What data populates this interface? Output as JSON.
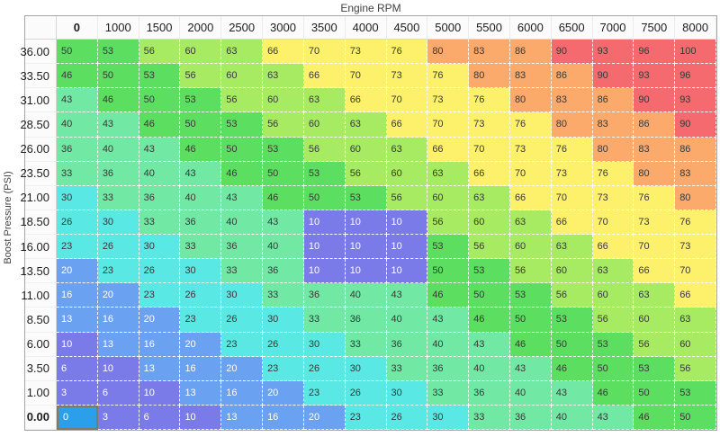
{
  "title": "Engine RPM",
  "y_axis_label": "Boost Pressure (PSI)",
  "chart_data": {
    "type": "heatmap",
    "xlabel": "Engine RPM",
    "ylabel": "Boost Pressure (PSI)",
    "columns": [
      "0",
      "1000",
      "1500",
      "2000",
      "2500",
      "3000",
      "3500",
      "4000",
      "4500",
      "5000",
      "5500",
      "6000",
      "6500",
      "7000",
      "7500",
      "8000"
    ],
    "rows": [
      "36.00",
      "33.50",
      "31.00",
      "28.50",
      "26.00",
      "23.50",
      "21.00",
      "18.50",
      "16.00",
      "13.50",
      "11.00",
      "8.50",
      "6.00",
      "3.50",
      "1.00",
      "0.00"
    ],
    "values": [
      [
        50,
        53,
        56,
        60,
        63,
        66,
        70,
        73,
        76,
        80,
        83,
        86,
        90,
        93,
        96,
        100
      ],
      [
        46,
        50,
        53,
        56,
        60,
        63,
        66,
        70,
        73,
        76,
        80,
        83,
        86,
        90,
        93,
        96
      ],
      [
        43,
        46,
        50,
        53,
        56,
        60,
        63,
        66,
        70,
        73,
        76,
        80,
        83,
        86,
        90,
        93
      ],
      [
        40,
        43,
        46,
        50,
        53,
        56,
        60,
        63,
        66,
        70,
        73,
        76,
        80,
        83,
        86,
        90
      ],
      [
        36,
        40,
        43,
        46,
        50,
        53,
        56,
        60,
        63,
        66,
        70,
        73,
        76,
        80,
        83,
        86
      ],
      [
        33,
        36,
        40,
        43,
        46,
        50,
        53,
        56,
        60,
        63,
        66,
        70,
        73,
        76,
        80,
        83
      ],
      [
        30,
        33,
        36,
        40,
        43,
        46,
        50,
        53,
        56,
        60,
        63,
        66,
        70,
        73,
        76,
        80
      ],
      [
        26,
        30,
        33,
        36,
        40,
        43,
        10,
        10,
        10,
        56,
        60,
        63,
        66,
        70,
        73,
        76
      ],
      [
        23,
        26,
        30,
        33,
        36,
        40,
        10,
        10,
        10,
        53,
        56,
        60,
        63,
        66,
        70,
        73
      ],
      [
        20,
        23,
        26,
        30,
        33,
        36,
        10,
        10,
        10,
        50,
        53,
        56,
        60,
        63,
        66,
        70
      ],
      [
        16,
        20,
        23,
        26,
        30,
        33,
        36,
        40,
        43,
        46,
        50,
        53,
        56,
        60,
        63,
        66
      ],
      [
        13,
        16,
        20,
        23,
        26,
        30,
        33,
        36,
        40,
        43,
        46,
        50,
        53,
        56,
        60,
        63
      ],
      [
        10,
        13,
        16,
        20,
        23,
        26,
        30,
        33,
        36,
        40,
        43,
        46,
        50,
        53,
        56,
        60
      ],
      [
        6,
        10,
        13,
        16,
        20,
        23,
        26,
        30,
        33,
        36,
        40,
        43,
        46,
        50,
        53,
        56
      ],
      [
        3,
        6,
        10,
        13,
        16,
        20,
        23,
        26,
        30,
        33,
        36,
        40,
        43,
        46,
        50,
        53
      ],
      [
        0,
        3,
        6,
        10,
        13,
        16,
        20,
        23,
        26,
        30,
        33,
        36,
        40,
        43,
        46,
        50
      ]
    ]
  },
  "active_cell": {
    "row": "0.00",
    "column": "0",
    "value": 0,
    "fill": "#2b9fea",
    "border": "#7d7a66"
  },
  "colors": {
    "text_dark": "#383838",
    "text_light": "#ffffff",
    "header_bg": "#fbfbfb",
    "table_border": "#a6a6a6",
    "cell_divider": "#ffffff",
    "white_text_max": 20,
    "scale_bands": [
      {
        "max": 12,
        "color": "#7b7ae9"
      },
      {
        "max": 22,
        "color": "#6ba1f1"
      },
      {
        "max": 32,
        "color": "#59e8e4"
      },
      {
        "max": 45,
        "color": "#71e9a5"
      },
      {
        "max": 55,
        "color": "#5cdf60"
      },
      {
        "max": 65,
        "color": "#a6eb61"
      },
      {
        "max": 78,
        "color": "#fdf16c"
      },
      {
        "max": 88,
        "color": "#fbaa6c"
      },
      {
        "max": 101,
        "color": "#f56a6e"
      }
    ]
  }
}
